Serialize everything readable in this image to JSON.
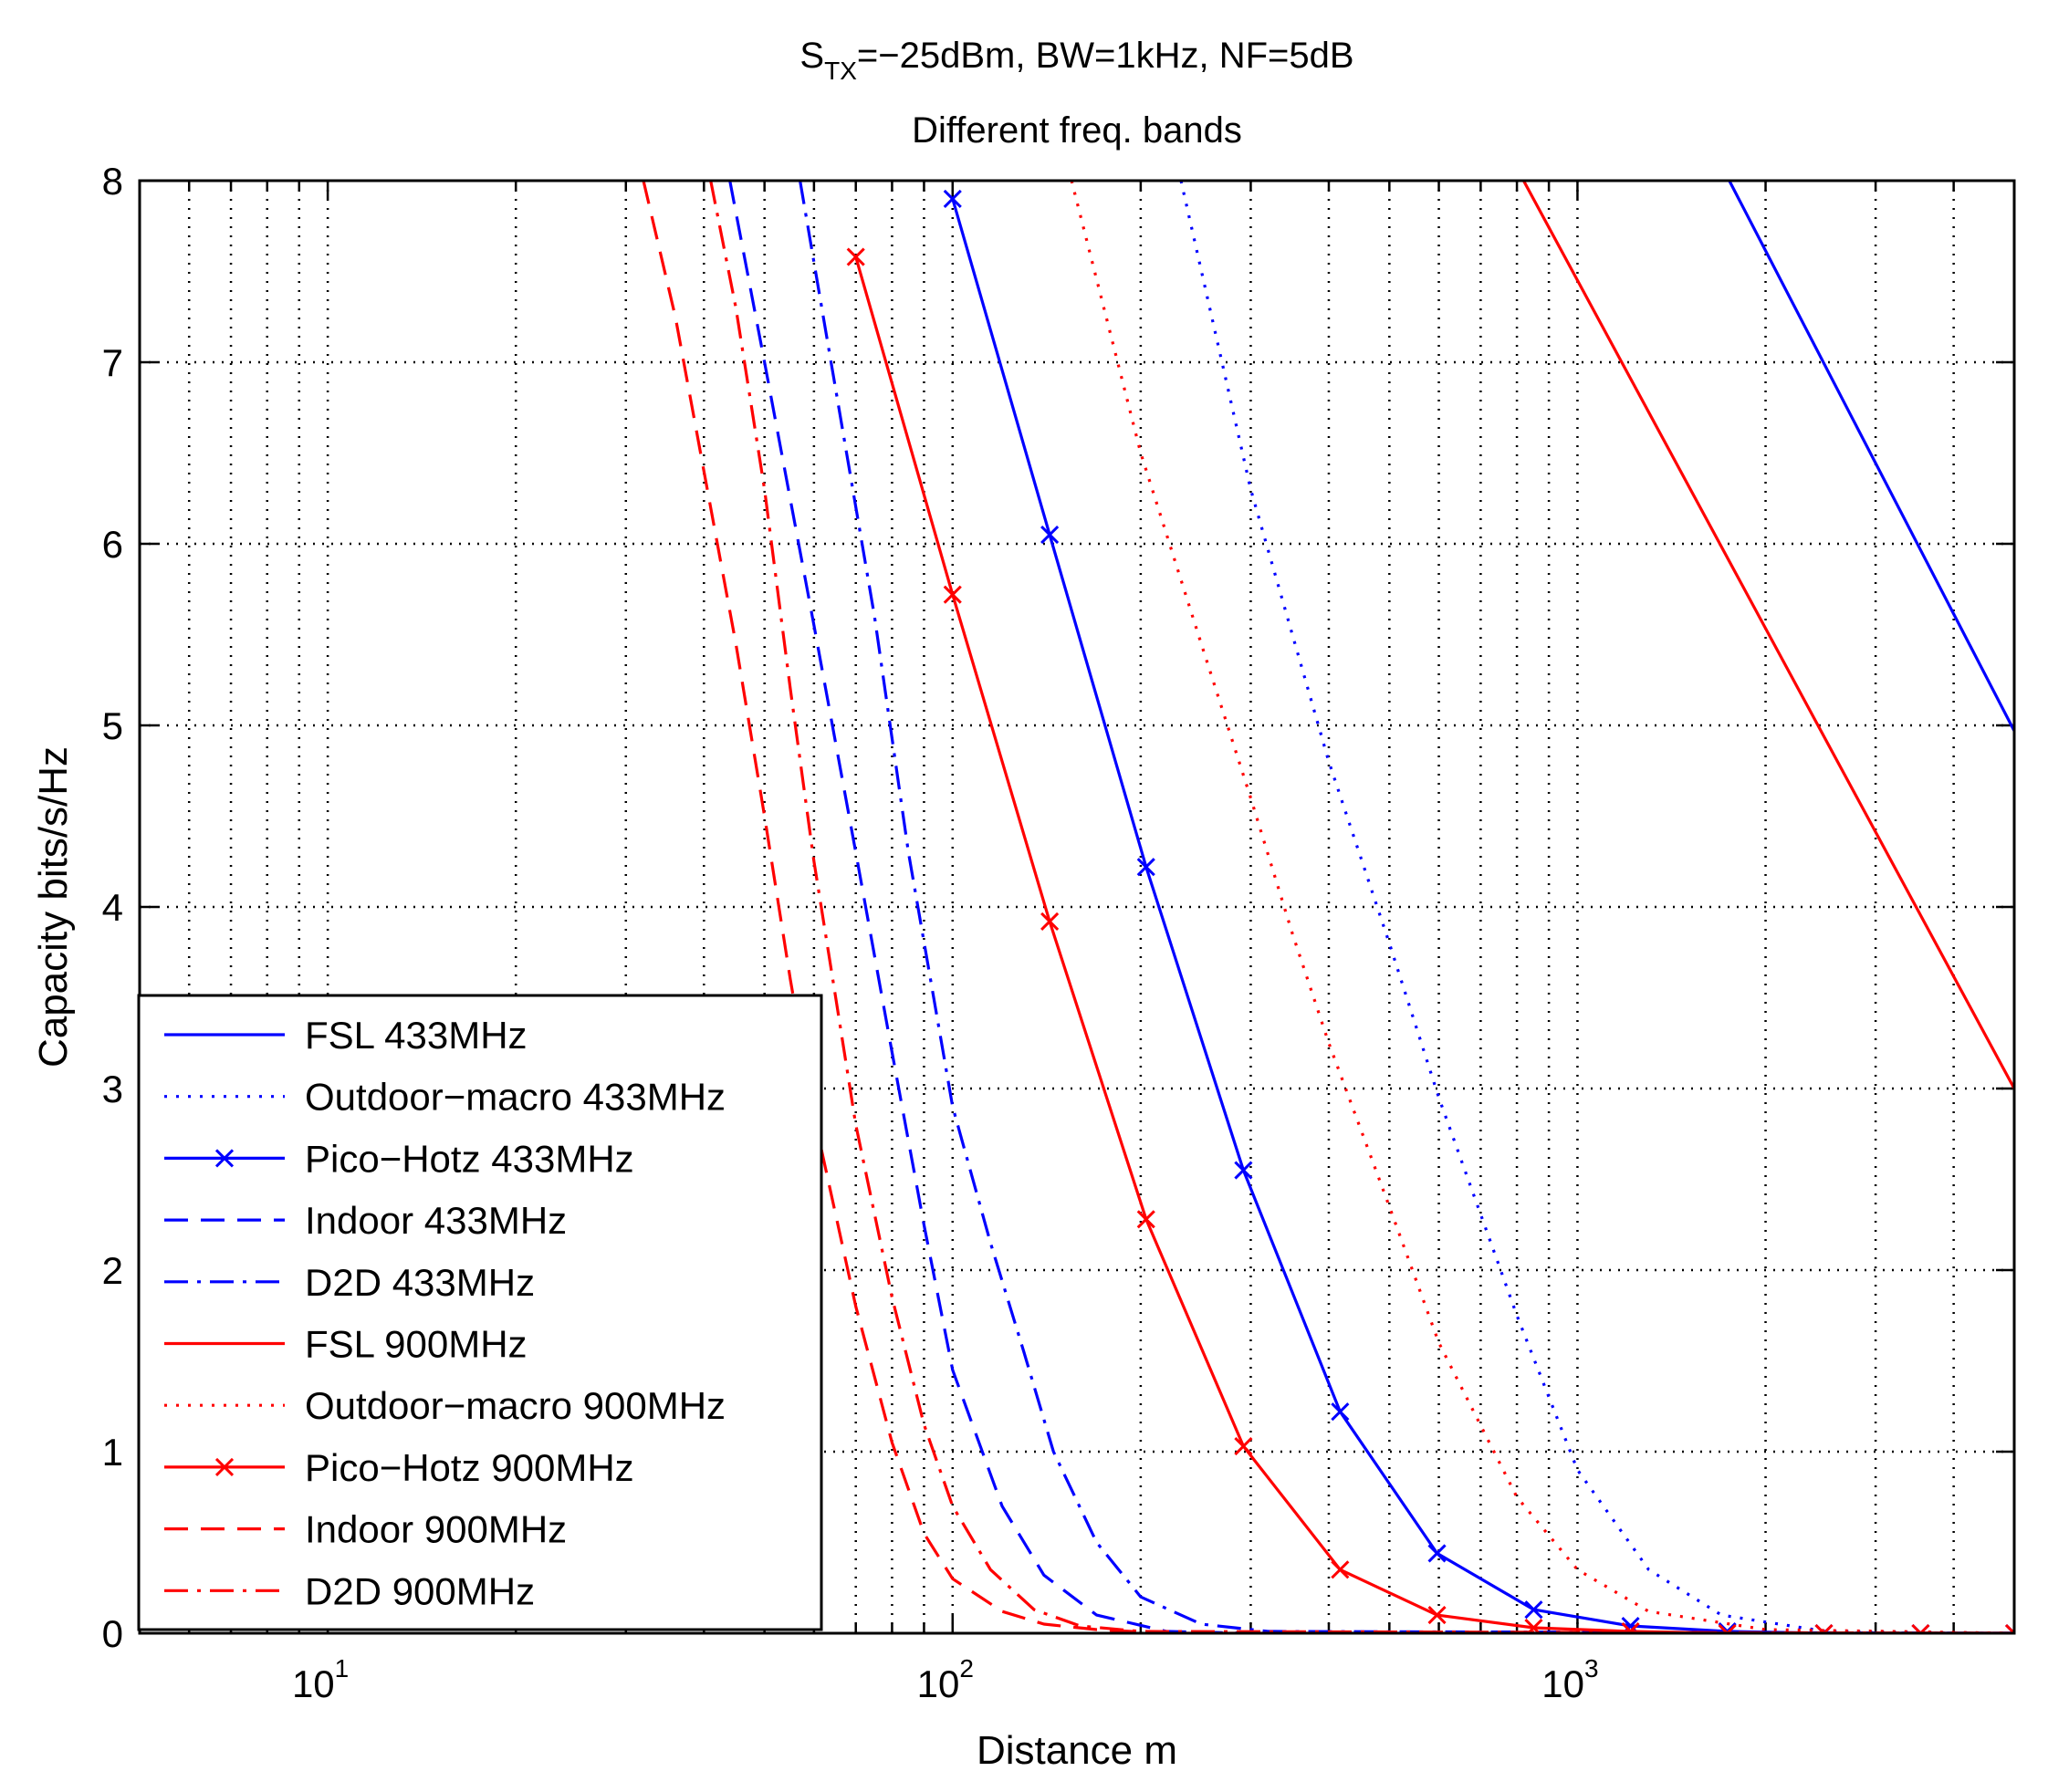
{
  "chart_data": {
    "type": "line",
    "title": {
      "line1_main": "S",
      "line1_sub": "TX",
      "line1_rest": "=−25dBm, BW=1kHz, NF=5dB",
      "line2": "Different freq. bands"
    },
    "xlabel": "Distance m",
    "ylabel": "Capacity bits/s/Hz",
    "xscale": "log",
    "xlim": [
      5,
      5000
    ],
    "ylim": [
      0,
      8
    ],
    "grid": true,
    "legend_position": "bottom-left",
    "x_ticks": [
      {
        "value": 10,
        "base": "10",
        "exp": "1"
      },
      {
        "value": 100,
        "base": "10",
        "exp": "2"
      },
      {
        "value": 1000,
        "base": "10",
        "exp": "3"
      }
    ],
    "y_ticks": [
      "0",
      "1",
      "2",
      "3",
      "4",
      "5",
      "6",
      "7",
      "8"
    ],
    "series": [
      {
        "name": "FSL 433MHz",
        "color": "#0000ff",
        "style": "solid",
        "marker": "none",
        "x": [
          1750,
          5000
        ],
        "y": [
          8,
          4.97
        ]
      },
      {
        "name": "Outdoor−macro 433MHz",
        "color": "#0000ff",
        "style": "dotted",
        "marker": "none",
        "x": [
          232,
          300,
          400,
          500,
          600,
          800,
          1000,
          1300,
          1700,
          2500,
          5000
        ],
        "y": [
          8,
          6.3,
          4.8,
          3.8,
          2.95,
          1.75,
          0.9,
          0.35,
          0.1,
          0.01,
          0
        ]
      },
      {
        "name": "Pico−Hotz 433MHz",
        "color": "#0000ff",
        "style": "solid",
        "marker": "x",
        "x": [
          100,
          143,
          204,
          292,
          417,
          596,
          851,
          1216,
          1737,
          2480,
          3541,
          5000
        ],
        "y": [
          7.9,
          6.05,
          4.22,
          2.55,
          1.22,
          0.44,
          0.13,
          0.04,
          0.01,
          0,
          0,
          0
        ]
      },
      {
        "name": "Indoor 433MHz",
        "color": "#0000ff",
        "style": "dashed",
        "marker": "none",
        "x": [
          44,
          50,
          60,
          70,
          80,
          90,
          100,
          120,
          140,
          170,
          220,
          300,
          5000
        ],
        "y": [
          8,
          7.0,
          5.55,
          4.3,
          3.2,
          2.25,
          1.45,
          0.7,
          0.32,
          0.1,
          0.01,
          0,
          0
        ]
      },
      {
        "name": "D2D 433MHz",
        "color": "#0000ff",
        "style": "dashdot",
        "marker": "none",
        "x": [
          57,
          65,
          75,
          85,
          100,
          115,
          130,
          145,
          170,
          200,
          250,
          320,
          5000
        ],
        "y": [
          8,
          6.85,
          5.6,
          4.3,
          2.9,
          2.15,
          1.55,
          1.0,
          0.5,
          0.2,
          0.05,
          0.01,
          0
        ]
      },
      {
        "name": "FSL 900MHz",
        "color": "#ff0000",
        "style": "solid",
        "marker": "none",
        "x": [
          820,
          5000
        ],
        "y": [
          8,
          3.0
        ]
      },
      {
        "name": "Outdoor−macro 900MHz",
        "color": "#ff0000",
        "style": "dotted",
        "marker": "none",
        "x": [
          155,
          200,
          250,
          300,
          350,
          400,
          500,
          600,
          800,
          1000,
          1300,
          2000,
          5000
        ],
        "y": [
          8,
          6.5,
          5.45,
          4.6,
          3.85,
          3.25,
          2.35,
          1.6,
          0.75,
          0.35,
          0.12,
          0.02,
          0
        ]
      },
      {
        "name": "Pico−Hotz 900MHz",
        "color": "#ff0000",
        "style": "solid",
        "marker": "x",
        "x": [
          70,
          100,
          143,
          204,
          292,
          417,
          596,
          851,
          1216,
          1737,
          2480,
          3541,
          5000
        ],
        "y": [
          7.58,
          5.72,
          3.92,
          2.28,
          1.03,
          0.35,
          0.1,
          0.03,
          0.01,
          0,
          0,
          0,
          0
        ]
      },
      {
        "name": "Indoor 900MHz",
        "color": "#ff0000",
        "style": "dashed",
        "marker": "none",
        "x": [
          32,
          36,
          40,
          45,
          50,
          55,
          60,
          70,
          80,
          90,
          100,
          120,
          140,
          170,
          220,
          5000
        ],
        "y": [
          8,
          7.25,
          6.4,
          5.45,
          4.5,
          3.6,
          2.85,
          1.8,
          1.05,
          0.55,
          0.3,
          0.12,
          0.05,
          0.02,
          0,
          0
        ]
      },
      {
        "name": "D2D 900MHz",
        "color": "#ff0000",
        "style": "dashdot",
        "marker": "none",
        "x": [
          41,
          45,
          50,
          55,
          60,
          65,
          70,
          80,
          90,
          100,
          115,
          135,
          160,
          200,
          5000
        ],
        "y": [
          8,
          7.3,
          6.3,
          5.2,
          4.25,
          3.5,
          2.8,
          1.85,
          1.15,
          0.7,
          0.35,
          0.13,
          0.04,
          0.01,
          0
        ]
      }
    ]
  }
}
